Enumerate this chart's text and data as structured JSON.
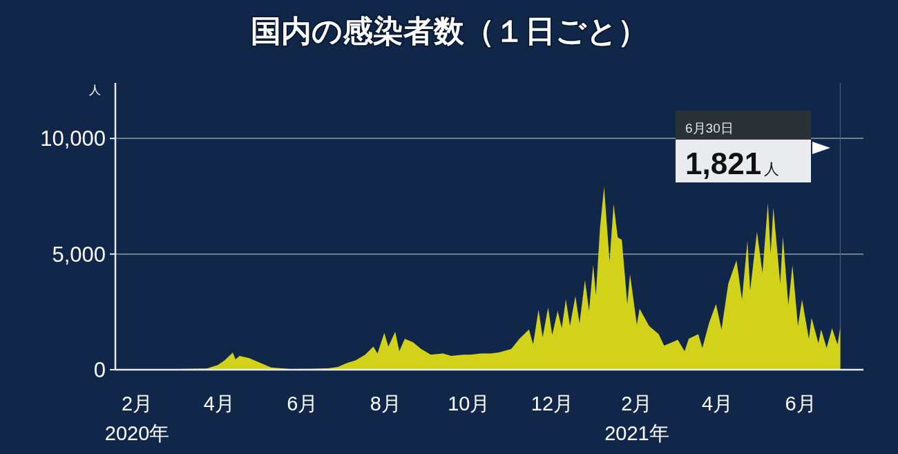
{
  "chart_data": {
    "type": "area",
    "title": "国内の感染者数（１日ごと）",
    "ylabel": "人",
    "x": [
      "2020-01-16",
      "2020-02-01",
      "2020-03-03",
      "2020-03-23",
      "2020-03-31",
      "2020-04-05",
      "2020-04-11",
      "2020-04-13",
      "2020-04-16",
      "2020-04-23",
      "2020-05-01",
      "2020-05-09",
      "2020-05-23",
      "2020-06-07",
      "2020-06-20",
      "2020-06-27",
      "2020-07-04",
      "2020-07-10",
      "2020-07-17",
      "2020-07-23",
      "2020-07-26",
      "2020-07-31",
      "2020-08-03",
      "2020-08-08",
      "2020-08-11",
      "2020-08-15",
      "2020-08-21",
      "2020-08-27",
      "2020-09-03",
      "2020-09-12",
      "2020-09-18",
      "2020-09-27",
      "2020-10-02",
      "2020-10-10",
      "2020-10-17",
      "2020-10-23",
      "2020-11-01",
      "2020-11-07",
      "2020-11-14",
      "2020-11-17",
      "2020-11-21",
      "2020-11-24",
      "2020-11-28",
      "2020-12-01",
      "2020-12-05",
      "2020-12-08",
      "2020-12-11",
      "2020-12-14",
      "2020-12-18",
      "2020-12-21",
      "2020-12-25",
      "2020-12-28",
      "2020-12-31",
      "2021-01-02",
      "2021-01-05",
      "2021-01-08",
      "2021-01-12",
      "2021-01-15",
      "2021-01-18",
      "2021-01-21",
      "2021-01-25",
      "2021-01-27",
      "2021-02-01",
      "2021-02-03",
      "2021-02-10",
      "2021-02-17",
      "2021-02-21",
      "2021-02-23",
      "2021-03-03",
      "2021-03-08",
      "2021-03-11",
      "2021-03-18",
      "2021-03-21",
      "2021-03-26",
      "2021-03-31",
      "2021-04-04",
      "2021-04-09",
      "2021-04-15",
      "2021-04-19",
      "2021-04-23",
      "2021-04-25",
      "2021-04-30",
      "2021-05-04",
      "2021-05-08",
      "2021-05-10",
      "2021-05-12",
      "2021-05-17",
      "2021-05-19",
      "2021-05-23",
      "2021-05-26",
      "2021-05-30",
      "2021-06-02",
      "2021-06-07",
      "2021-06-09",
      "2021-06-14",
      "2021-06-16",
      "2021-06-20",
      "2021-06-24",
      "2021-06-28",
      "2021-06-30"
    ],
    "series": [
      {
        "color": "#d2d21a",
        "values": [
          0,
          0,
          30,
          50,
          200,
          400,
          740,
          450,
          600,
          500,
          300,
          100,
          30,
          40,
          60,
          120,
          300,
          400,
          650,
          1000,
          700,
          1590,
          1000,
          1640,
          800,
          1340,
          1190,
          900,
          650,
          700,
          600,
          650,
          650,
          700,
          700,
          750,
          900,
          1340,
          1740,
          1100,
          2590,
          1400,
          2690,
          1500,
          2540,
          1800,
          3040,
          1900,
          3180,
          2000,
          3880,
          2540,
          4530,
          3230,
          6120,
          7910,
          4690,
          7160,
          5720,
          5620,
          2840,
          4130,
          1940,
          2640,
          1890,
          1540,
          1040,
          1090,
          1290,
          800,
          1340,
          1540,
          940,
          2040,
          2840,
          1740,
          3730,
          4730,
          3030,
          5570,
          3430,
          5970,
          4180,
          7210,
          5020,
          7010,
          3730,
          5770,
          2790,
          4530,
          1890,
          3030,
          1340,
          2240,
          1140,
          1740,
          940,
          1790,
          1090,
          1821
        ]
      }
    ],
    "xlim": [
      "2020-01-16",
      "2021-07-17"
    ],
    "xticks": [
      {
        "value": "2020-02-01",
        "label": "2月\n2020年"
      },
      {
        "value": "2020-04-01",
        "label": "4月"
      },
      {
        "value": "2020-06-01",
        "label": "6月"
      },
      {
        "value": "2020-08-01",
        "label": "8月"
      },
      {
        "value": "2020-10-01",
        "label": "10月"
      },
      {
        "value": "2020-12-01",
        "label": "12月"
      },
      {
        "value": "2021-02-01",
        "label": "2月\n2021年"
      },
      {
        "value": "2021-04-01",
        "label": "4月"
      },
      {
        "value": "2021-06-01",
        "label": "6月"
      }
    ],
    "ylim": [
      0,
      12400
    ],
    "yticks": [
      0,
      {
        "value": 5000,
        "label": "5,000"
      },
      {
        "value": 10000,
        "label": "10,000"
      }
    ],
    "grid": "y",
    "ref_lines": [
      {
        "axis": "x",
        "value": "2021-06-30",
        "color": "#4a5d7e"
      }
    ],
    "annotations": [
      "6月30日",
      "1,821人"
    ]
  }
}
